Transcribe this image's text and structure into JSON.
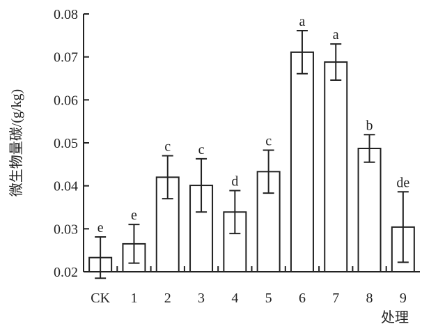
{
  "chart_data": {
    "type": "bar",
    "title": "",
    "xlabel": "处理",
    "ylabel": "微生物量碳/(g/kg)",
    "categories": [
      "CK",
      "1",
      "2",
      "3",
      "4",
      "5",
      "6",
      "7",
      "8",
      "9"
    ],
    "values": [
      0.0233,
      0.0265,
      0.042,
      0.0401,
      0.0339,
      0.0433,
      0.0711,
      0.0688,
      0.0487,
      0.0304
    ],
    "error": [
      0.0048,
      0.0045,
      0.005,
      0.0062,
      0.005,
      0.005,
      0.005,
      0.0042,
      0.0032,
      0.0082
    ],
    "significance": [
      "e",
      "e",
      "c",
      "c",
      "d",
      "c",
      "a",
      "a",
      "b",
      "de"
    ],
    "ylim": [
      0.02,
      0.08
    ],
    "yticks": [
      "0.02",
      "0.03",
      "0.04",
      "0.05",
      "0.06",
      "0.07",
      "0.08"
    ],
    "grid": false,
    "colors": {
      "bar_fill": "#ffffff",
      "bar_stroke": "#222222",
      "axis": "#222222"
    }
  }
}
